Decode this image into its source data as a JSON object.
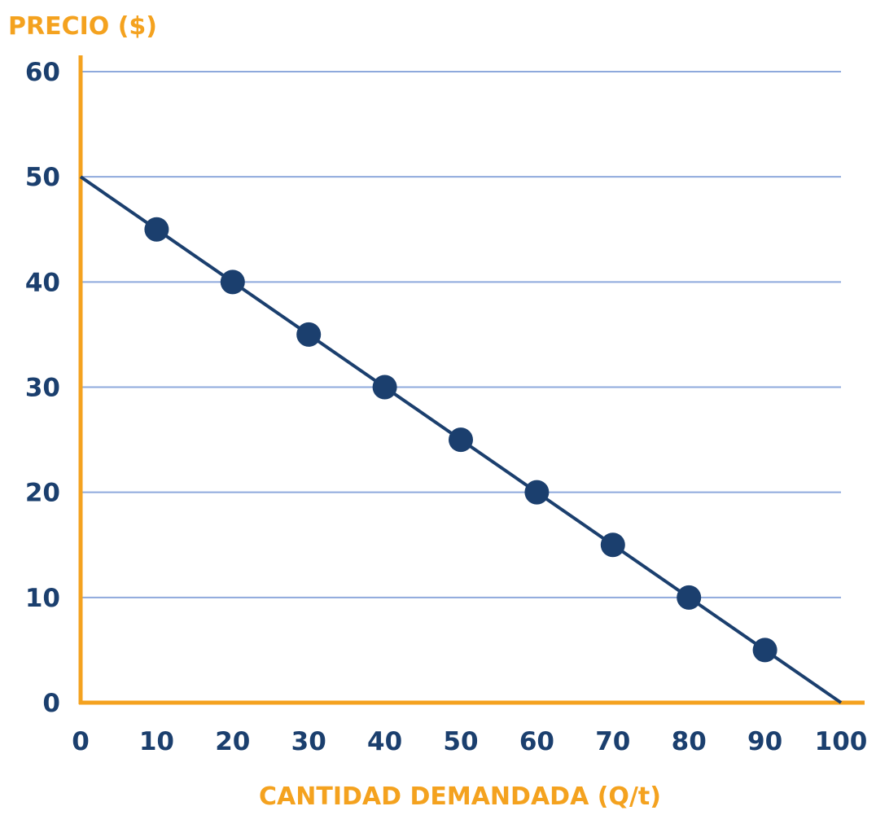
{
  "chart_data": {
    "type": "line",
    "ylabel": "PRECIO ($)",
    "xlabel": "CANTIDAD DEMANDADA (Q/t)",
    "xlim": [
      0,
      100
    ],
    "ylim": [
      0,
      60
    ],
    "x_ticks": [
      "0",
      "10",
      "20",
      "30",
      "40",
      "50",
      "60",
      "70",
      "80",
      "90",
      "100"
    ],
    "y_ticks": [
      "0",
      "10",
      "20",
      "30",
      "40",
      "50",
      "60"
    ],
    "line": {
      "x": [
        0,
        100
      ],
      "y": [
        50,
        0
      ]
    },
    "points": {
      "x": [
        10,
        20,
        30,
        40,
        50,
        60,
        70,
        80,
        90
      ],
      "y": [
        45,
        40,
        35,
        30,
        25,
        20,
        15,
        10,
        5
      ]
    },
    "grid": "horizontal",
    "colors": {
      "axis": "#f4a21f",
      "grid": "#8ea9dc",
      "line": "#1b3f6e",
      "points": "#1b3f6e",
      "tick_text": "#1b3f6e",
      "axis_title": "#f4a21f"
    }
  }
}
